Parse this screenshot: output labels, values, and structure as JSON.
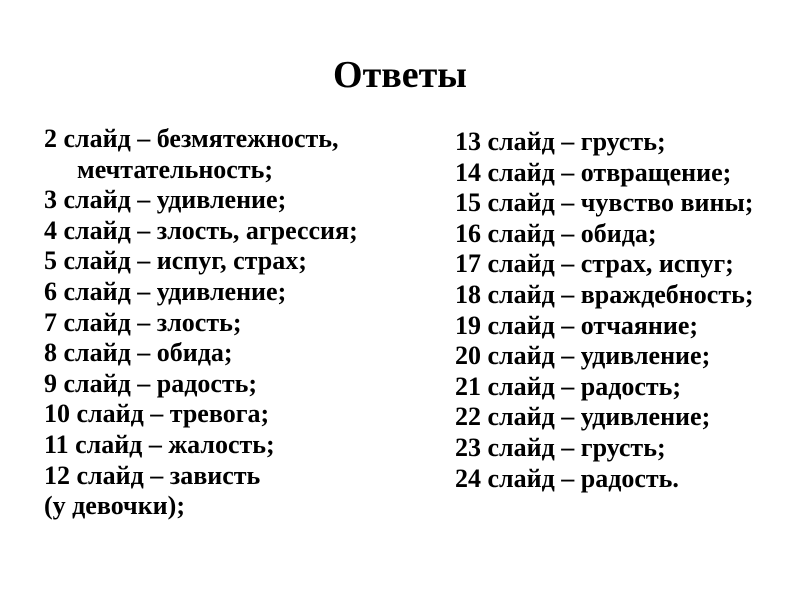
{
  "slide": {
    "title": "Ответы",
    "colors": {
      "background": "#ffffff",
      "text": "#000000"
    },
    "columns": {
      "left": {
        "lines": [
          {
            "text": "2 слайд – безмятежность,"
          },
          {
            "text": "мечтательность;",
            "indent": true
          },
          {
            "text": "3 слайд – удивление;"
          },
          {
            "text": "4 слайд – злость, агрессия;"
          },
          {
            "text": "5 слайд – испуг, страх;"
          },
          {
            "text": "6 слайд – удивление;"
          },
          {
            "text": "7 слайд – злость;"
          },
          {
            "text": "8 слайд – обида;"
          },
          {
            "text": "9 слайд – радость;"
          },
          {
            "text": "10 слайд – тревога;"
          },
          {
            "text": "11 слайд – жалость;"
          },
          {
            "text": "12 слайд – зависть"
          },
          {
            "text": "(у девочки);"
          }
        ]
      },
      "right": {
        "lines": [
          {
            "text": "13 слайд – грусть;"
          },
          {
            "text": "14 слайд – отвращение;"
          },
          {
            "text": "15 слайд – чувство вины;"
          },
          {
            "text": "16 слайд – обида;"
          },
          {
            "text": "17 слайд – страх, испуг;"
          },
          {
            "text": "18 слайд – враждебность;"
          },
          {
            "text": "19 слайд – отчаяние;"
          },
          {
            "text": "20 слайд – удивление;"
          },
          {
            "text": "21 слайд – радость;"
          },
          {
            "text": "22 слайд – удивление;"
          },
          {
            "text": "23 слайд – грусть;"
          },
          {
            "text": "24 слайд – радость."
          }
        ]
      }
    }
  }
}
